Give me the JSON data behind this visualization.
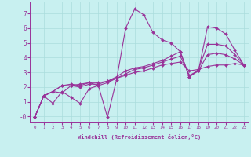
{
  "xlabel": "Windchill (Refroidissement éolien,°C)",
  "background_color": "#c8f0f0",
  "line_color": "#993399",
  "grid_color": "#aadddd",
  "lines": [
    [
      0,
      1,
      2,
      3,
      4,
      5,
      6,
      7,
      8,
      9,
      10,
      11,
      12,
      13,
      14,
      15,
      16,
      17,
      18,
      19,
      20,
      21,
      22,
      23
    ],
    [
      -0.05,
      1.4,
      0.9,
      1.7,
      1.3,
      0.9,
      1.9,
      2.1,
      -0.05,
      2.5,
      6.0,
      7.3,
      6.9,
      5.7,
      5.2,
      5.0,
      4.4,
      2.7,
      3.1,
      6.1,
      6.0,
      5.6,
      4.5,
      3.5
    ],
    [
      -0.05,
      1.4,
      1.7,
      1.6,
      2.1,
      2.2,
      2.3,
      2.1,
      2.3,
      2.6,
      2.8,
      3.0,
      3.1,
      3.3,
      3.5,
      3.6,
      3.7,
      3.1,
      3.2,
      3.4,
      3.5,
      3.5,
      3.6,
      3.5
    ],
    [
      -0.05,
      1.4,
      1.7,
      2.1,
      2.2,
      2.1,
      2.3,
      2.3,
      2.4,
      2.7,
      3.1,
      3.3,
      3.4,
      3.6,
      3.8,
      4.1,
      4.4,
      2.7,
      3.2,
      4.9,
      4.9,
      4.8,
      4.2,
      3.5
    ],
    [
      -0.05,
      1.4,
      1.7,
      2.1,
      2.1,
      2.0,
      2.2,
      2.2,
      2.4,
      2.6,
      2.9,
      3.2,
      3.3,
      3.5,
      3.7,
      3.9,
      4.1,
      2.8,
      3.1,
      4.2,
      4.3,
      4.2,
      3.9,
      3.5
    ]
  ],
  "ylim": [
    -0.4,
    7.8
  ],
  "xlim": [
    -0.5,
    23.5
  ],
  "ytick_vals": [
    0,
    1,
    2,
    3,
    4,
    5,
    6,
    7
  ],
  "ytick_labels": [
    "-0",
    "1",
    "2",
    "3",
    "4",
    "5",
    "6",
    "7"
  ],
  "xticks": [
    0,
    1,
    2,
    3,
    4,
    5,
    6,
    7,
    8,
    9,
    10,
    11,
    12,
    13,
    14,
    15,
    16,
    17,
    18,
    19,
    20,
    21,
    22,
    23
  ],
  "marker": "D",
  "markersize": 2.0,
  "linewidth": 0.8
}
